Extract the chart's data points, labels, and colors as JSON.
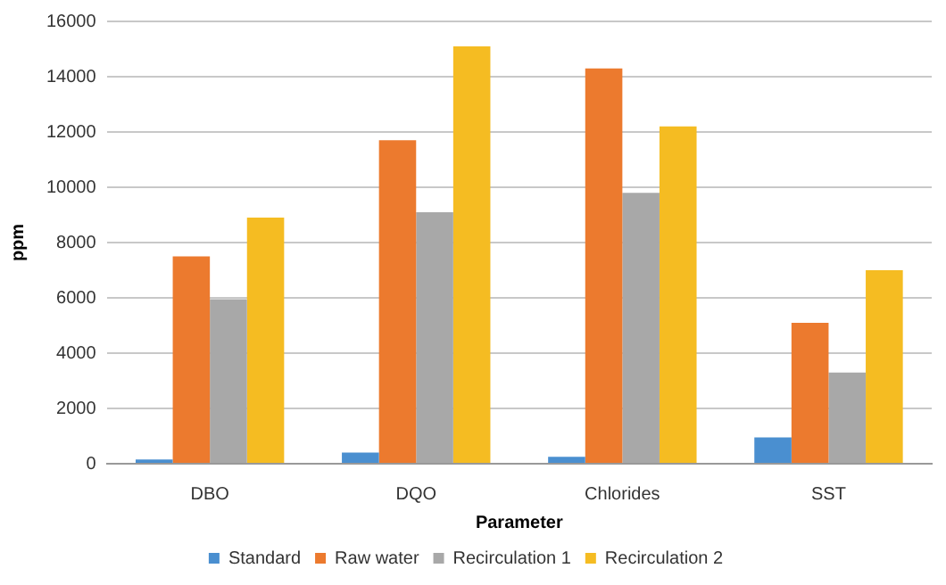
{
  "chart_data": {
    "type": "bar",
    "xlabel": "Parameter",
    "ylabel": "ppm",
    "categories": [
      "DBO",
      "DQO",
      "Chlorides",
      "SST"
    ],
    "series": [
      {
        "name": "Standard",
        "color": "#4a8fd0",
        "values": [
          150,
          400,
          250,
          950
        ]
      },
      {
        "name": "Raw water",
        "color": "#ec7a2e",
        "values": [
          7500,
          11700,
          14300,
          5100
        ]
      },
      {
        "name": "Recirculation 1",
        "color": "#a8a8a8",
        "values": [
          5950,
          9100,
          9800,
          3300
        ]
      },
      {
        "name": "Recirculation 2",
        "color": "#f5bc22",
        "values": [
          8900,
          15100,
          12200,
          7000
        ]
      }
    ],
    "ylim": [
      0,
      16000
    ],
    "yticks": [
      0,
      2000,
      4000,
      6000,
      8000,
      10000,
      12000,
      14000,
      16000
    ],
    "grid": "y",
    "legend": "bottom"
  }
}
